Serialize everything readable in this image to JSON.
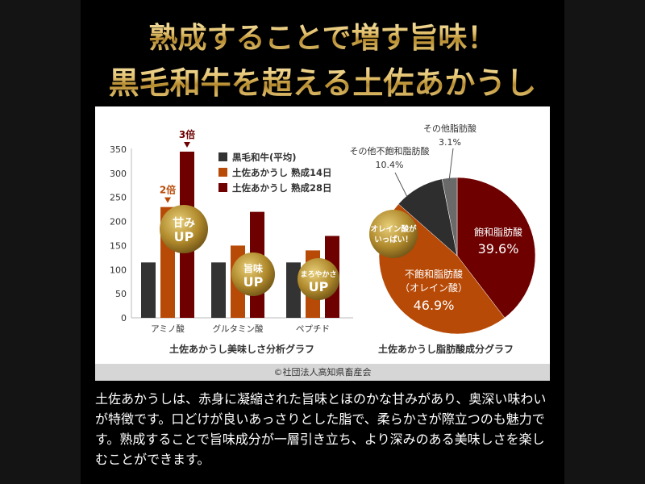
{
  "header": {
    "line1": "熟成することで増す旨味！",
    "line2": "黒毛和牛を超える土佐あかうし"
  },
  "credit": "©社団法人高知県畜産会",
  "description": "土佐あかうしは、赤身に凝縮された旨味とほのかな甘みがあり、奥深い味わいが特徴です。口どけが良いあっさりとした脂で、柔らかさが際立つのも魅力です。熟成することで旨味成分が一層引き立ち、より深みのある美味しさを楽しむことができます。",
  "colors": {
    "wagyu": "#333333",
    "aged14": "#b84a07",
    "aged28": "#6e0000",
    "gold": "#b8902f"
  },
  "chart_data": [
    {
      "type": "bar",
      "title": "土佐あかうし美味しさ分析グラフ",
      "categories": [
        "アミノ酸",
        "グルタミン酸",
        "ペプチド"
      ],
      "ylim": [
        0,
        350
      ],
      "yticks": [
        0,
        50,
        100,
        150,
        200,
        250,
        300,
        350
      ],
      "legend": "top-right",
      "series": [
        {
          "name": "黒毛和牛(平均)",
          "values": [
            115,
            115,
            115
          ]
        },
        {
          "name": "土佐あかうし 熟成14日",
          "values": [
            230,
            150,
            140
          ]
        },
        {
          "name": "土佐あかうし 熟成28日",
          "values": [
            345,
            220,
            170
          ]
        }
      ],
      "annotations": [
        {
          "text": "2倍",
          "category": "アミノ酸",
          "series": 1
        },
        {
          "text": "3倍",
          "category": "アミノ酸",
          "series": 2
        }
      ],
      "badges": [
        {
          "top": "甘み",
          "bottom": "UP"
        },
        {
          "top": "旨味",
          "bottom": "UP"
        },
        {
          "top": "まろやかさ",
          "bottom": "UP"
        }
      ]
    },
    {
      "type": "pie",
      "title": "土佐あかうし脂肪酸成分グラフ",
      "slices": [
        {
          "label": "飽和脂肪酸",
          "value": 39.6,
          "display": "39.6%"
        },
        {
          "label": "不飽和脂肪酸",
          "sub": "（オレイン酸）",
          "value": 46.9,
          "display": "46.9%"
        },
        {
          "label": "その他不飽和脂肪酸",
          "value": 10.4,
          "display": "10.4%"
        },
        {
          "label": "その他脂肪酸",
          "value": 3.1,
          "display": "3.1%"
        }
      ],
      "badge": {
        "line1": "オレイン酸が",
        "line2": "いっぱい！"
      }
    }
  ]
}
